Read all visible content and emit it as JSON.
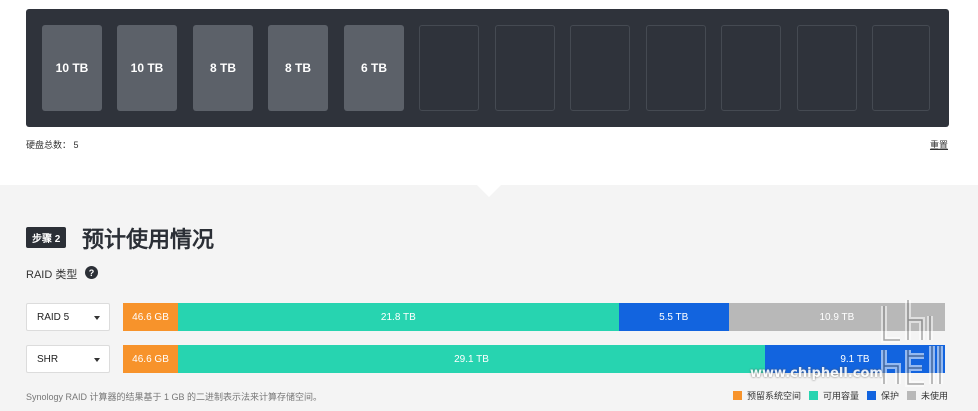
{
  "disks": {
    "filled": [
      "10 TB",
      "10 TB",
      "8 TB",
      "8 TB",
      "6 TB"
    ],
    "total_label": "硬盘总数： 5",
    "reset_label": "重置"
  },
  "step": {
    "badge": "步骤 2",
    "title": "预计使用情况"
  },
  "raid": {
    "label": "RAID 类型",
    "help": "?",
    "rows": [
      {
        "selected": "RAID 5",
        "segments": [
          {
            "type": "reserved",
            "label": "46.6 GB",
            "fraction": 0.067
          },
          {
            "type": "available",
            "label": "21.8 TB",
            "fraction": 0.536
          },
          {
            "type": "protection",
            "label": "5.5 TB",
            "fraction": 0.134
          },
          {
            "type": "unused",
            "label": "10.9 TB",
            "fraction": 0.263
          }
        ]
      },
      {
        "selected": "SHR",
        "segments": [
          {
            "type": "reserved",
            "label": "46.6 GB",
            "fraction": 0.067
          },
          {
            "type": "available",
            "label": "29.1 TB",
            "fraction": 0.714
          },
          {
            "type": "protection",
            "label": "9.1 TB",
            "fraction": 0.219
          }
        ]
      }
    ]
  },
  "footnote": "Synology RAID 计算器的结果基于 1 GB 的二进制表示法来计算存储空间。",
  "legend": [
    {
      "type": "reserved",
      "label": "预留系统空间",
      "color": "#f7932b"
    },
    {
      "type": "available",
      "label": "可用容量",
      "color": "#27d4b0"
    },
    {
      "type": "protection",
      "label": "保护",
      "color": "#1264df"
    },
    {
      "type": "unused",
      "label": "未使用",
      "color": "#b8b8b8"
    }
  ],
  "colors": {
    "reserved": "#f7932b",
    "available": "#27d4b0",
    "protection": "#1264df",
    "unused": "#b8b8b8"
  },
  "watermark": "www.chiphell.com"
}
